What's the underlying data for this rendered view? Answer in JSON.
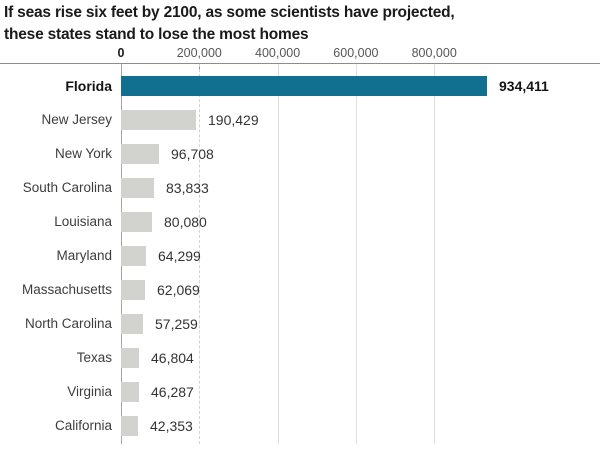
{
  "header": {
    "title_line1": "If seas rise six feet by 2100, as some scientists have projected,",
    "title_line2": "these states stand to lose the most homes"
  },
  "chart_data": {
    "type": "bar",
    "orientation": "horizontal",
    "title": "If seas rise six feet by 2100, as some scientists have projected, these states stand to lose the most homes",
    "categories": [
      "Florida",
      "New Jersey",
      "New York",
      "South Carolina",
      "Louisiana",
      "Maryland",
      "Massachusetts",
      "North Carolina",
      "Texas",
      "Virginia",
      "California"
    ],
    "values": [
      934411,
      190429,
      96708,
      83833,
      80080,
      64299,
      62069,
      57259,
      46804,
      46287,
      42353
    ],
    "value_labels": [
      "934,411",
      "190,429",
      "96,708",
      "83,833",
      "80,080",
      "64,299",
      "62,069",
      "57,259",
      "46,804",
      "46,287",
      "42,353"
    ],
    "highlighted_category": "Florida",
    "xlabel": "",
    "ylabel": "",
    "x_axis": {
      "position": "top",
      "ticks": [
        0,
        200000,
        400000,
        600000,
        800000
      ],
      "tick_labels": [
        "0",
        "200,000",
        "400,000",
        "600,000",
        "800,000"
      ],
      "range": [
        0,
        1224000
      ],
      "grid": true,
      "dashed_gridline_value": 200000
    },
    "colors": {
      "highlight_bar": "#116f90",
      "default_bar": "#d2d2ce",
      "axis_line": "#8c8c8c",
      "title_text": "#1a1a1a"
    },
    "legend": null
  }
}
